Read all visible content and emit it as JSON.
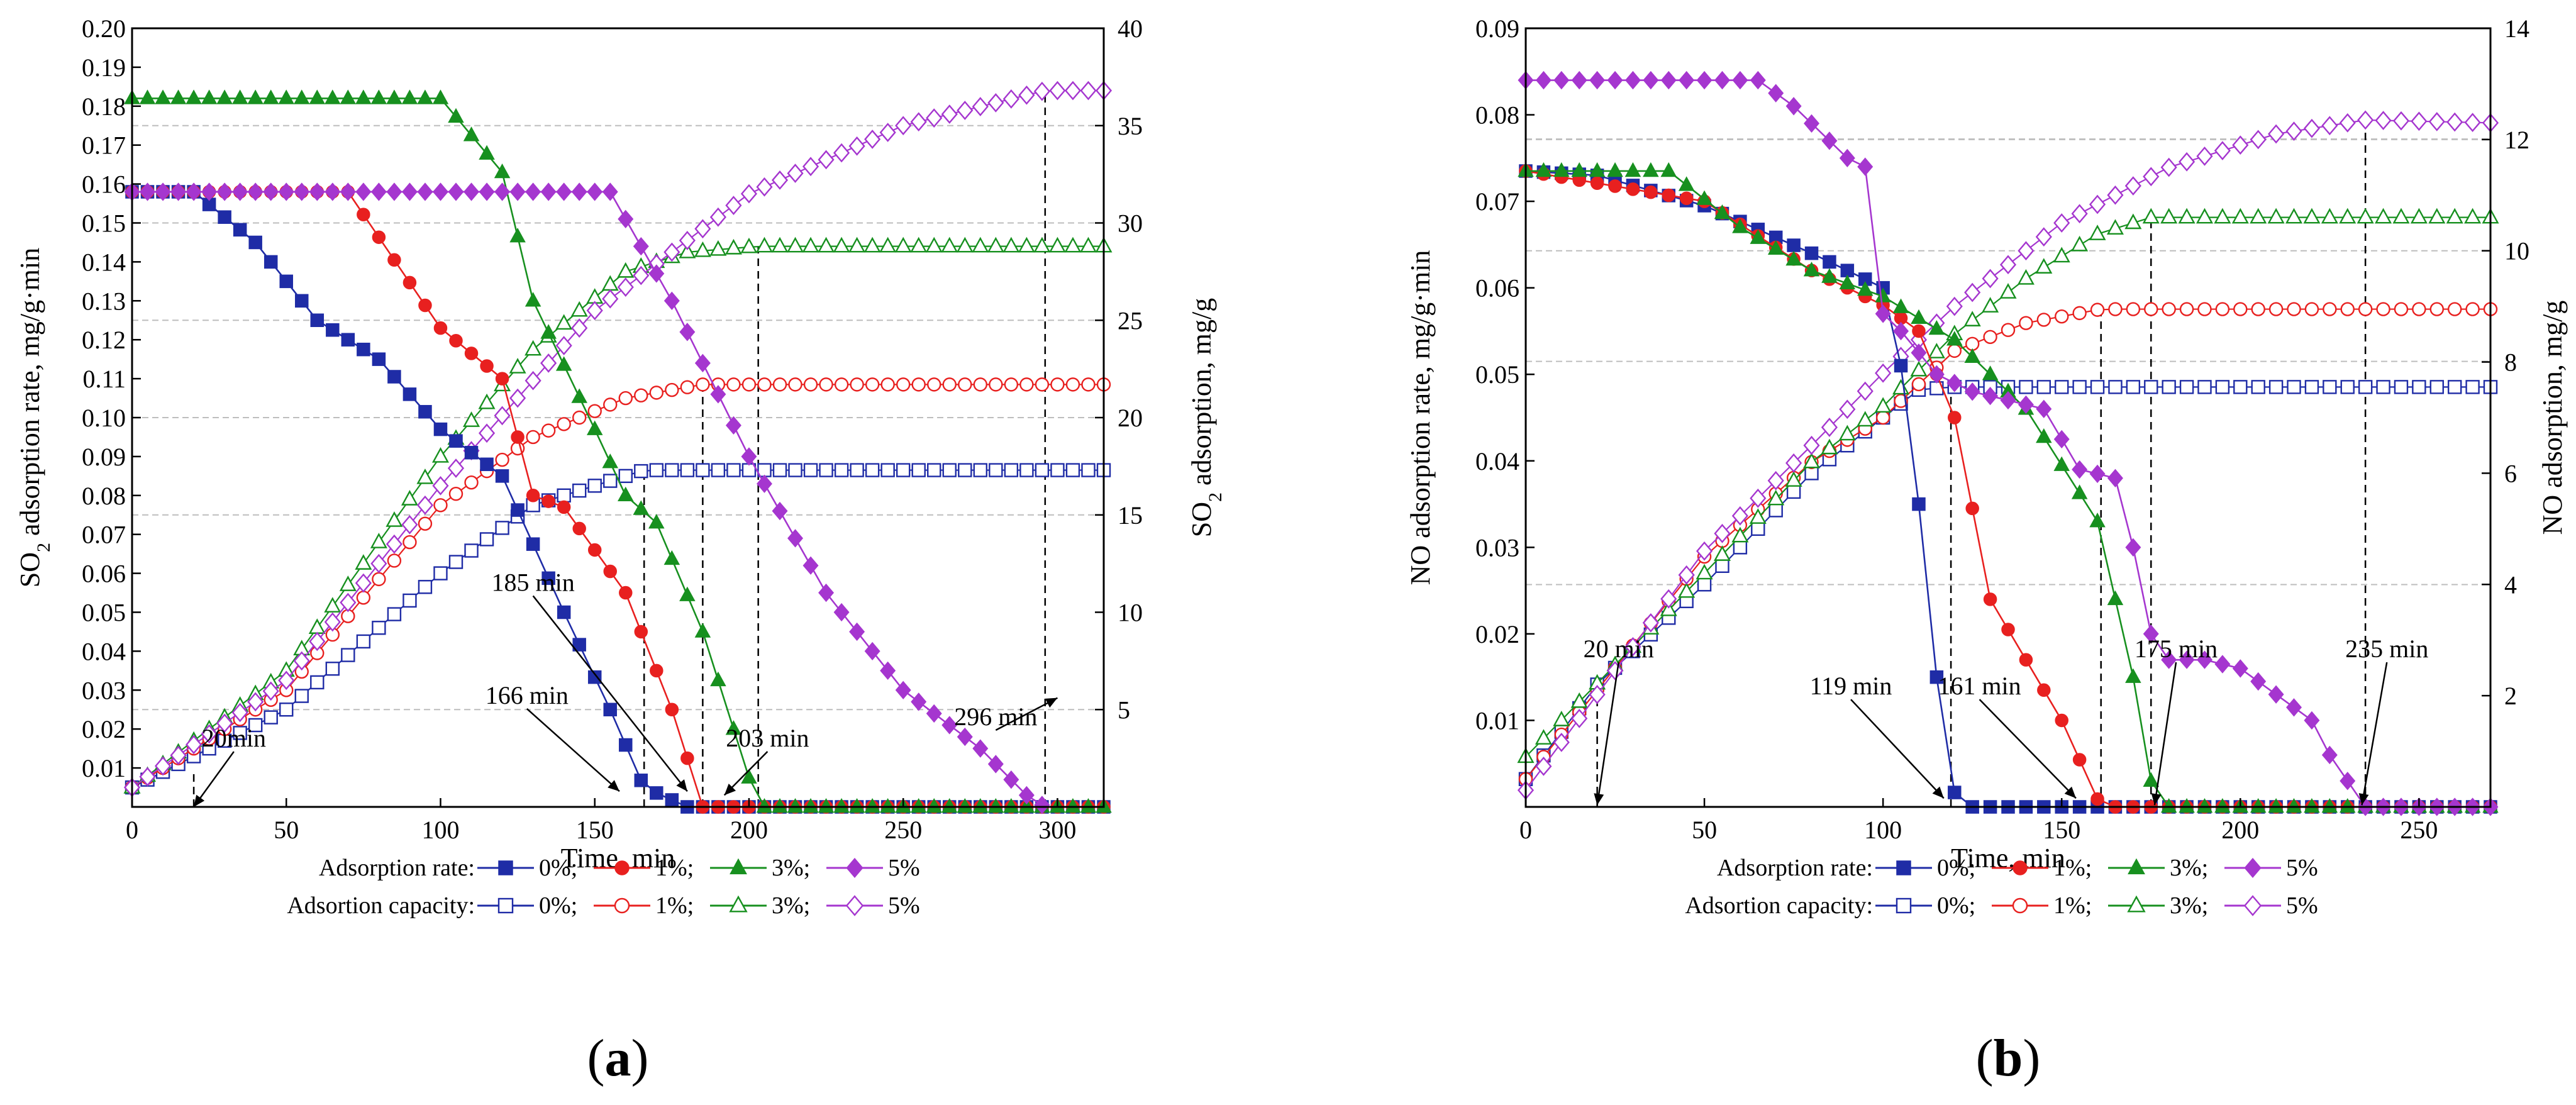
{
  "chart_data": [
    {
      "type": "line",
      "panel_label": "a",
      "xlabel": "Time, min",
      "ylabel_left": {
        "pre": "SO",
        "sub": "2",
        "post": " adsorption rate, mg/g·min"
      },
      "ylabel_right": {
        "pre": "SO",
        "sub": "2",
        "post": " adsorption, mg/g"
      },
      "xlim": [
        0,
        315
      ],
      "ylim_left": [
        0,
        0.2
      ],
      "ylim_right": [
        0,
        40
      ],
      "xticks": [
        0,
        50,
        100,
        150,
        200,
        250,
        300
      ],
      "yticks_left": [
        "0.01",
        "0.02",
        "0.03",
        "0.04",
        "0.05",
        "0.06",
        "0.07",
        "0.08",
        "0.09",
        "0.10",
        "0.11",
        "0.12",
        "0.13",
        "0.14",
        "0.15",
        "0.16",
        "0.17",
        "0.18",
        "0.19",
        "0.20"
      ],
      "yticks_right": [
        5,
        10,
        15,
        20,
        25,
        30,
        35,
        40
      ],
      "grid_left": [
        0.025,
        0.075,
        0.125,
        0.175
      ],
      "grid_right": [
        20,
        30
      ],
      "legend_rate_label": "Adsorption rate:",
      "legend_capacity_label": "Adsortion capacity:",
      "rate_series": [
        {
          "name": "0%",
          "legend": "0%;",
          "color": "#1f2ca6",
          "marker": "square",
          "step": 5,
          "points": [
            [
              0,
              0.158
            ],
            [
              20,
              0.158
            ],
            [
              40,
              0.145
            ],
            [
              60,
              0.125
            ],
            [
              80,
              0.115
            ],
            [
              100,
              0.097
            ],
            [
              120,
              0.085
            ],
            [
              140,
              0.05
            ],
            [
              155,
              0.025
            ],
            [
              166,
              0.005
            ],
            [
              180,
              0
            ],
            [
              315,
              0
            ]
          ]
        },
        {
          "name": "1%",
          "legend": "1%;",
          "color": "#e8201f",
          "marker": "circle",
          "step": 5,
          "points": [
            [
              0,
              0.158
            ],
            [
              70,
              0.158
            ],
            [
              100,
              0.123
            ],
            [
              120,
              0.11
            ],
            [
              130,
              0.08
            ],
            [
              140,
              0.077
            ],
            [
              160,
              0.055
            ],
            [
              175,
              0.025
            ],
            [
              185,
              0
            ],
            [
              315,
              0
            ]
          ]
        },
        {
          "name": "3%",
          "legend": "3%;",
          "color": "#17901f",
          "marker": "triangle",
          "step": 5,
          "points": [
            [
              0,
              0.182
            ],
            [
              100,
              0.182
            ],
            [
              120,
              0.163
            ],
            [
              130,
              0.13
            ],
            [
              150,
              0.097
            ],
            [
              160,
              0.08
            ],
            [
              170,
              0.073
            ],
            [
              185,
              0.045
            ],
            [
              203,
              0
            ],
            [
              315,
              0
            ]
          ]
        },
        {
          "name": "5%",
          "legend": "5%",
          "color": "#a536cf",
          "marker": "diamond",
          "step": 5,
          "points": [
            [
              0,
              0.158
            ],
            [
              155,
              0.158
            ],
            [
              175,
              0.13
            ],
            [
              200,
              0.09
            ],
            [
              225,
              0.055
            ],
            [
              250,
              0.03
            ],
            [
              275,
              0.015
            ],
            [
              290,
              0.003
            ],
            [
              296,
              0
            ]
          ]
        }
      ],
      "capacity_series": [
        {
          "name": "0%",
          "legend": "0%;",
          "color": "#1f2ca6",
          "marker": "square",
          "step": 5,
          "points": [
            [
              0,
              1
            ],
            [
              50,
              5
            ],
            [
              100,
              12
            ],
            [
              130,
              15.5
            ],
            [
              166,
              17.3
            ],
            [
              315,
              17.3
            ]
          ]
        },
        {
          "name": "1%",
          "legend": "1%;",
          "color": "#e8201f",
          "marker": "circle",
          "step": 5,
          "points": [
            [
              0,
              1
            ],
            [
              50,
              6
            ],
            [
              100,
              15.5
            ],
            [
              130,
              19
            ],
            [
              160,
              21
            ],
            [
              185,
              21.7
            ],
            [
              315,
              21.7
            ]
          ]
        },
        {
          "name": "3%",
          "legend": "3%;",
          "color": "#17901f",
          "marker": "triangle",
          "step": 5,
          "points": [
            [
              0,
              1
            ],
            [
              50,
              7
            ],
            [
              100,
              18
            ],
            [
              130,
              23.5
            ],
            [
              160,
              27.5
            ],
            [
              180,
              28.5
            ],
            [
              203,
              28.8
            ],
            [
              315,
              28.8
            ]
          ]
        },
        {
          "name": "5%",
          "legend": "5%",
          "color": "#a536cf",
          "marker": "diamond",
          "step": 5,
          "points": [
            [
              0,
              1
            ],
            [
              50,
              6.5
            ],
            [
              100,
              16.5
            ],
            [
              150,
              25.5
            ],
            [
              200,
              31.5
            ],
            [
              250,
              35
            ],
            [
              296,
              36.8
            ],
            [
              315,
              36.8
            ]
          ]
        }
      ],
      "vlines": [
        {
          "x": 20,
          "right_y": 1.8
        },
        {
          "x": 166,
          "right_y": 17.3
        },
        {
          "x": 185,
          "right_y": 21.7
        },
        {
          "x": 203,
          "right_y": 28.8
        },
        {
          "x": 296,
          "right_y": 36.8
        }
      ],
      "annotations": [
        {
          "text": "20min",
          "label": [
            33,
            0.0155
          ],
          "tip": [
            20,
            0
          ]
        },
        {
          "text": "166 min",
          "label": [
            128,
            0.0265
          ],
          "tip": [
            158,
            0.004
          ]
        },
        {
          "text": "185 min",
          "label": [
            130,
            0.0555
          ],
          "tip": [
            180,
            0.004
          ]
        },
        {
          "text": "203 min",
          "label": [
            206,
            0.0155
          ],
          "tip": [
            192,
            0.003
          ]
        },
        {
          "text": "296 min",
          "label": [
            280,
            0.021
          ],
          "tip": [
            300,
            0.028
          ]
        }
      ]
    },
    {
      "type": "line",
      "panel_label": "b",
      "xlabel": "Time, min",
      "ylabel_left": {
        "pre": "NO adsorption rate, mg/g·min",
        "sub": "",
        "post": ""
      },
      "ylabel_right": {
        "pre": "NO adsorption, mg/g",
        "sub": "",
        "post": ""
      },
      "xlim": [
        0,
        270
      ],
      "ylim_left": [
        0,
        0.09
      ],
      "ylim_right": [
        0,
        14
      ],
      "xticks": [
        0,
        50,
        100,
        150,
        200,
        250
      ],
      "yticks_left": [
        "0.01",
        "0.02",
        "0.03",
        "0.04",
        "0.05",
        "0.06",
        "0.07",
        "0.08",
        "0.09"
      ],
      "yticks_right": [
        2,
        4,
        6,
        8,
        10,
        12,
        14
      ],
      "grid_left": [
        0.0257,
        0.0515,
        0.0772
      ],
      "grid_right": [
        10,
        12
      ],
      "legend_rate_label": "Adsorption rate:",
      "legend_capacity_label": "Adsortion capacity:",
      "rate_series": [
        {
          "name": "0%",
          "legend": "0%;",
          "color": "#1f2ca6",
          "marker": "square",
          "step": 5,
          "points": [
            [
              0,
              0.0735
            ],
            [
              20,
              0.073
            ],
            [
              50,
              0.0695
            ],
            [
              80,
              0.064
            ],
            [
              100,
              0.06
            ],
            [
              105,
              0.051
            ],
            [
              110,
              0.035
            ],
            [
              115,
              0.015
            ],
            [
              119,
              0.002
            ],
            [
              125,
              0
            ],
            [
              270,
              0
            ]
          ]
        },
        {
          "name": "1%",
          "legend": "1%;",
          "color": "#e8201f",
          "marker": "circle",
          "step": 5,
          "points": [
            [
              0,
              0.0735
            ],
            [
              50,
              0.07
            ],
            [
              80,
              0.062
            ],
            [
              100,
              0.058
            ],
            [
              110,
              0.055
            ],
            [
              120,
              0.045
            ],
            [
              130,
              0.024
            ],
            [
              150,
              0.01
            ],
            [
              161,
              0
            ],
            [
              270,
              0
            ]
          ]
        },
        {
          "name": "3%",
          "legend": "3%;",
          "color": "#17901f",
          "marker": "triangle",
          "step": 5,
          "points": [
            [
              0,
              0.0735
            ],
            [
              40,
              0.0735
            ],
            [
              60,
              0.067
            ],
            [
              80,
              0.062
            ],
            [
              100,
              0.059
            ],
            [
              120,
              0.054
            ],
            [
              140,
              0.046
            ],
            [
              160,
              0.033
            ],
            [
              170,
              0.015
            ],
            [
              175,
              0.003
            ],
            [
              180,
              0
            ],
            [
              270,
              0
            ]
          ]
        },
        {
          "name": "5%",
          "legend": "5%",
          "color": "#a536cf",
          "marker": "diamond",
          "step": 5,
          "points": [
            [
              0,
              0.084
            ],
            [
              65,
              0.084
            ],
            [
              75,
              0.081
            ],
            [
              90,
              0.075
            ],
            [
              95,
              0.074
            ],
            [
              100,
              0.057
            ],
            [
              105,
              0.055
            ],
            [
              115,
              0.05
            ],
            [
              125,
              0.048
            ],
            [
              145,
              0.046
            ],
            [
              155,
              0.039
            ],
            [
              165,
              0.038
            ],
            [
              170,
              0.03
            ],
            [
              175,
              0.02
            ],
            [
              180,
              0.017
            ],
            [
              190,
              0.017
            ],
            [
              200,
              0.016
            ],
            [
              220,
              0.01
            ],
            [
              225,
              0.006
            ],
            [
              235,
              0
            ],
            [
              270,
              0
            ]
          ]
        }
      ],
      "capacity_series": [
        {
          "name": "0%",
          "legend": "0%;",
          "color": "#1f2ca6",
          "marker": "square",
          "step": 5,
          "points": [
            [
              0,
              0.5
            ],
            [
              20,
              2.2
            ],
            [
              50,
              4
            ],
            [
              80,
              6
            ],
            [
              100,
              7
            ],
            [
              110,
              7.5
            ],
            [
              119,
              7.55
            ],
            [
              270,
              7.55
            ]
          ]
        },
        {
          "name": "1%",
          "legend": "1%;",
          "color": "#e8201f",
          "marker": "circle",
          "step": 5,
          "points": [
            [
              0,
              0.5
            ],
            [
              50,
              4.5
            ],
            [
              80,
              6.2
            ],
            [
              100,
              7
            ],
            [
              120,
              8.2
            ],
            [
              140,
              8.7
            ],
            [
              161,
              8.95
            ],
            [
              270,
              8.95
            ]
          ]
        },
        {
          "name": "3%",
          "legend": "3%;",
          "color": "#17901f",
          "marker": "triangle",
          "step": 5,
          "points": [
            [
              0,
              0.9
            ],
            [
              50,
              4.2
            ],
            [
              80,
              6.2
            ],
            [
              100,
              7.2
            ],
            [
              120,
              8.5
            ],
            [
              140,
              9.5
            ],
            [
              160,
              10.3
            ],
            [
              175,
              10.6
            ],
            [
              270,
              10.6
            ]
          ]
        },
        {
          "name": "5%",
          "legend": "5%",
          "color": "#a536cf",
          "marker": "diamond",
          "step": 5,
          "points": [
            [
              0,
              0.3
            ],
            [
              50,
              4.6
            ],
            [
              80,
              6.5
            ],
            [
              100,
              7.8
            ],
            [
              120,
              9
            ],
            [
              150,
              10.5
            ],
            [
              180,
              11.5
            ],
            [
              210,
              12.1
            ],
            [
              235,
              12.35
            ],
            [
              270,
              12.3
            ]
          ]
        }
      ],
      "vlines": [
        {
          "x": 20,
          "right_y": 2.1
        },
        {
          "x": 119,
          "right_y": 7.55
        },
        {
          "x": 161,
          "right_y": 8.95
        },
        {
          "x": 175,
          "right_y": 10.6
        },
        {
          "x": 235,
          "right_y": 12.35
        }
      ],
      "annotations": [
        {
          "text": "20 min",
          "label": [
            26,
            0.0173
          ],
          "tip": [
            20,
            0.0002
          ]
        },
        {
          "text": "119 min",
          "label": [
            91,
            0.013
          ],
          "tip": [
            117,
            0.001
          ]
        },
        {
          "text": "161 min",
          "label": [
            127,
            0.013
          ],
          "tip": [
            154,
            0.001
          ]
        },
        {
          "text": "175 min",
          "label": [
            182,
            0.0173
          ],
          "tip": [
            176,
            0.0002
          ]
        },
        {
          "text": "235 min",
          "label": [
            241,
            0.0173
          ],
          "tip": [
            234,
            0.0002
          ]
        }
      ]
    }
  ]
}
